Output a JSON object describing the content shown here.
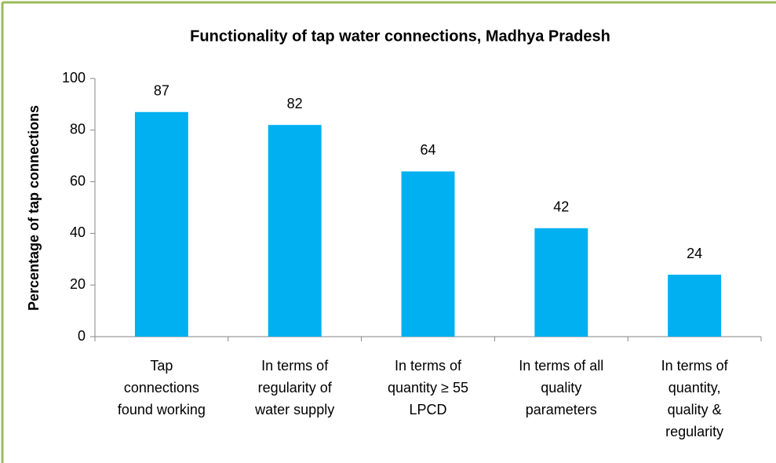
{
  "chart_data": {
    "type": "bar",
    "title": "Functionality of tap water connections, Madhya Pradesh",
    "ylabel": "Percentage of tap connections",
    "categories": [
      [
        "Tap",
        "connections",
        "found working"
      ],
      [
        "In terms of",
        "regularity of",
        "water supply"
      ],
      [
        "In terms of",
        "quantity ≥ 55",
        "LPCD"
      ],
      [
        "In terms of all",
        "quality",
        "parameters"
      ],
      [
        "In terms of",
        "quantity,",
        "quality &",
        "regularity"
      ]
    ],
    "values": [
      87,
      82,
      64,
      42,
      24
    ],
    "color": "#00b0f0",
    "ylim": [
      0,
      100
    ],
    "yticks": [
      0,
      20,
      40,
      60,
      80,
      100
    ],
    "grid": false
  }
}
